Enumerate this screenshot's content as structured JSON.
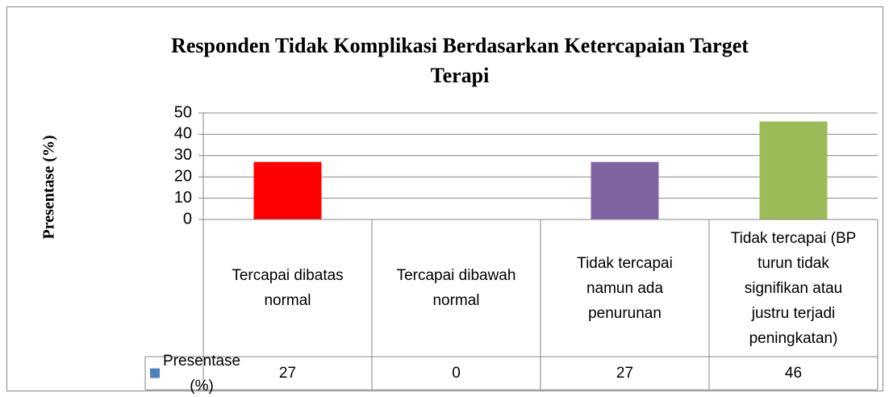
{
  "chart_data": {
    "type": "bar",
    "title": "Responden Tidak Komplikasi Berdasarkan Ketercapaian Target Terapi",
    "y_label": "Presentase (%)",
    "categories": [
      "Tercapai dibatas normal",
      "Tercapai dibawah normal",
      "Tidak tercapai namun ada penurunan",
      "Tidak tercapai (BP turun tidak signifikan atau justru terjadi peningkatan)"
    ],
    "series": [
      {
        "name": "Presentase (%)",
        "color": "#4f81bd",
        "colors": [
          "#ff0000",
          "#4f81bd",
          "#8064a2",
          "#9bbb59"
        ],
        "values": [
          27,
          0,
          27,
          46
        ]
      }
    ],
    "ylim": [
      0,
      50
    ],
    "yticks": [
      0,
      10,
      20,
      30,
      40,
      50
    ],
    "grid": true,
    "data_table": true
  }
}
